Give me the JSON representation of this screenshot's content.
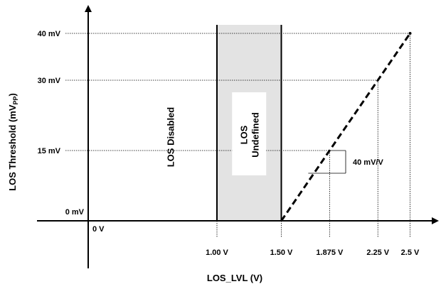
{
  "chart_data": {
    "type": "line",
    "xlabel": "LOS_LVL (V)",
    "ylabel": {
      "main": "LOS Threshold (mV",
      "sub": "PP",
      "close": ")"
    },
    "xlim": [
      0,
      2.5
    ],
    "ylim": [
      0,
      40
    ],
    "x_ticks": [
      {
        "value": 0,
        "label": "0 V"
      },
      {
        "value": 1.0,
        "label": "1.00 V"
      },
      {
        "value": 1.5,
        "label": "1.50 V"
      },
      {
        "value": 1.875,
        "label": "1.875 V"
      },
      {
        "value": 2.25,
        "label": "2.25 V"
      },
      {
        "value": 2.5,
        "label": "2.5 V"
      }
    ],
    "y_ticks": [
      {
        "value": 0,
        "label": "0 mV"
      },
      {
        "value": 15,
        "label": "15 mV"
      },
      {
        "value": 30,
        "label": "30 mV"
      },
      {
        "value": 40,
        "label": "40 mV"
      }
    ],
    "series": [
      {
        "style": "dashed",
        "color": "#000000",
        "points": [
          [
            1.5,
            0
          ],
          [
            2.5,
            40
          ]
        ]
      }
    ],
    "regions": [
      {
        "label": "LOS Disabled",
        "x_range": [
          0,
          1.0
        ],
        "fill": "none"
      },
      {
        "label_lines": [
          "LOS",
          "Undefined"
        ],
        "x_range": [
          1.0,
          1.5
        ],
        "fill": "#e3e3e3"
      }
    ],
    "slope_annotation": {
      "label": "40 mV/V",
      "x_range": [
        1.875,
        2.0
      ],
      "y_range": [
        15,
        20
      ]
    },
    "guide_lines": [
      {
        "x": 1.875,
        "y": 15
      },
      {
        "x": 2.25,
        "y": 30
      },
      {
        "x": 2.5,
        "y": 40
      }
    ],
    "grid": false
  }
}
